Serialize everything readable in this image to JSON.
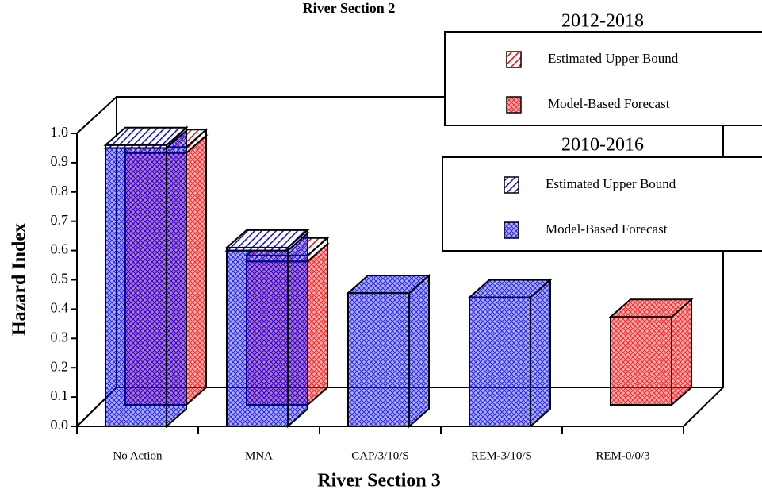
{
  "chart_data": {
    "type": "bar3d",
    "title": "River Section 2",
    "x_label": "River Section 3",
    "y_label": "Hazard Index",
    "categories": [
      "No Action",
      "MNA",
      "CAP/3/10/S",
      "REM-3/10/S",
      "REM-0/0/3"
    ],
    "ylim": [
      0,
      1
    ],
    "yticks": [
      {
        "value": 0,
        "label": "0.0"
      },
      0.1,
      0.2,
      0.3,
      0.4,
      0.5,
      0.6,
      0.7,
      0.8,
      0.9,
      {
        "value": 1,
        "label": "1.0"
      }
    ],
    "groups": [
      {
        "title": "2012-2018",
        "series": [
          {
            "name": "Estimated Upper Bound",
            "color": "#ff0000",
            "hatch": "diagonal",
            "values": [
              0.02,
              0.02,
              null,
              null,
              null
            ]
          },
          {
            "name": "Model-Based Forecast",
            "color": "#ff0000",
            "hatch": "crosshatch",
            "values": [
              0.86,
              0.49,
              null,
              null,
              0.3
            ]
          }
        ]
      },
      {
        "title": "2010-2016",
        "series": [
          {
            "name": "Estimated Upper Bound",
            "color": "#0000ff",
            "hatch": "diagonal",
            "values": [
              0.01,
              0.01,
              null,
              null,
              null
            ]
          },
          {
            "name": "Model-Based Forecast",
            "color": "#0000ff",
            "hatch": "crosshatch",
            "values": [
              0.95,
              0.6,
              0.455,
              0.44,
              null
            ]
          }
        ]
      }
    ]
  }
}
